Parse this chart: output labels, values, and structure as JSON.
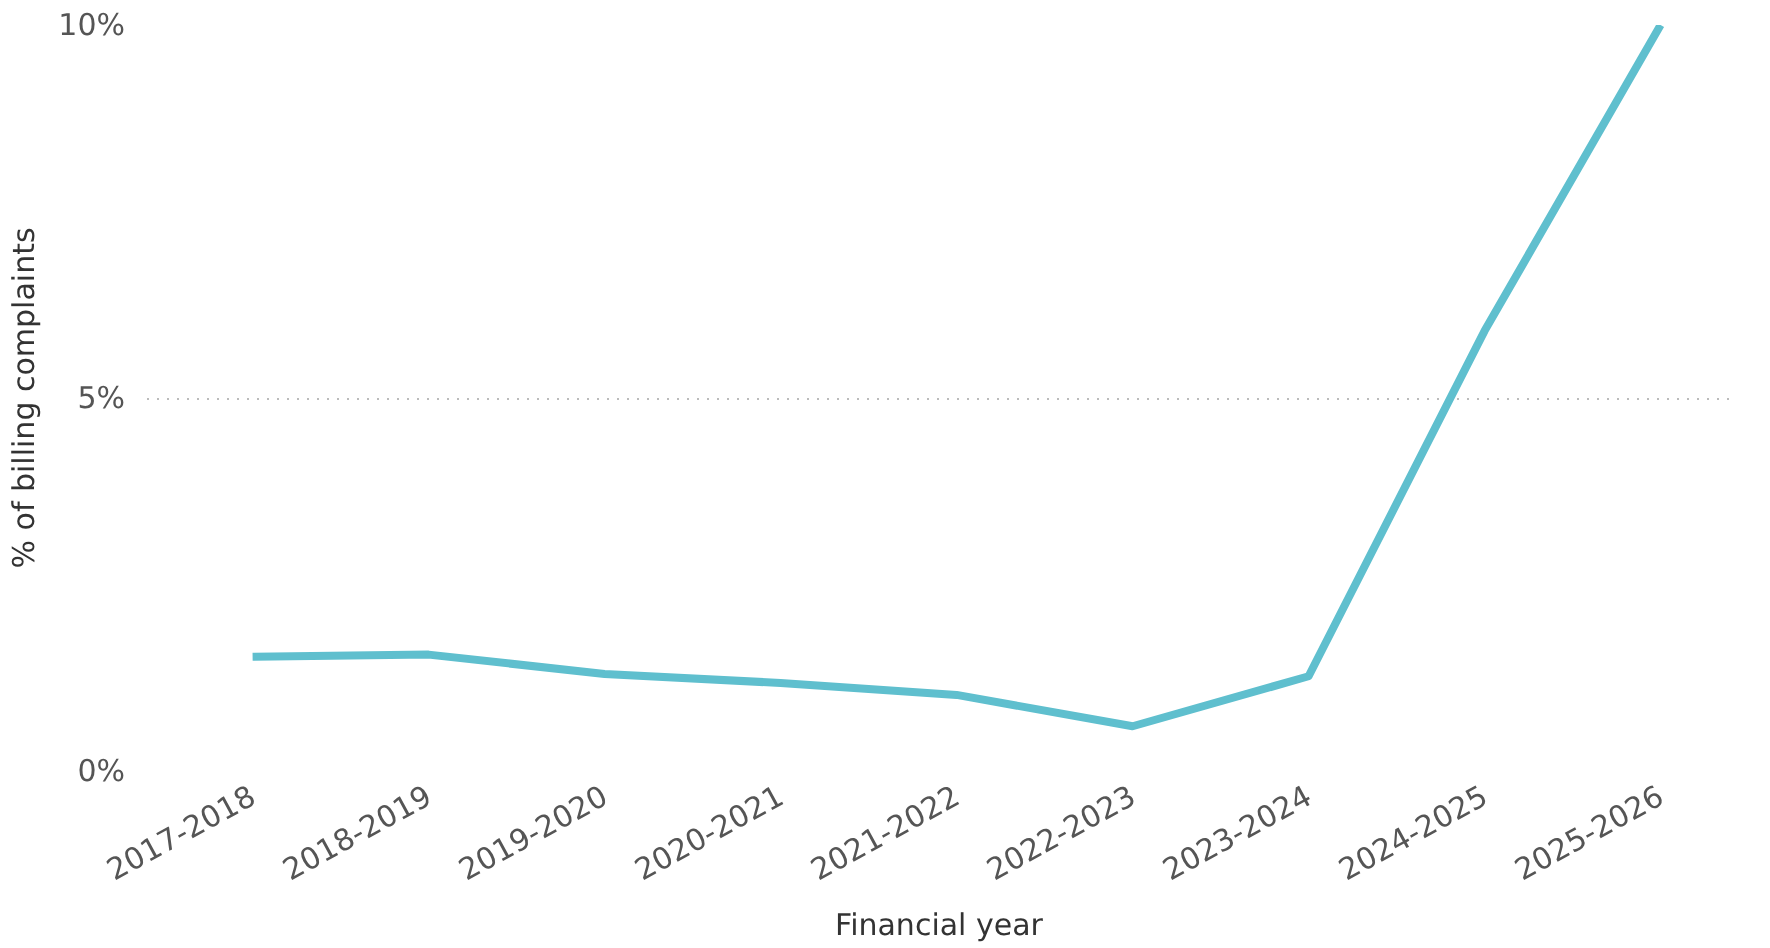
{
  "chart_data": {
    "type": "line",
    "xlabel": "Financial year",
    "ylabel": "% of billing complaints",
    "categories": [
      "2017-2018",
      "2018-2019",
      "2019-2020",
      "2020-2021",
      "2021-2022",
      "2022-2023",
      "2023-2024",
      "2024-2025",
      "2025-2026"
    ],
    "series": [
      {
        "color": "#5fbfce",
        "values": [
          1.53,
          1.56,
          1.3,
          1.18,
          1.02,
          0.6,
          1.27,
          5.9,
          10.0
        ]
      }
    ],
    "ylim": [
      0,
      10
    ],
    "yticks": [
      {
        "value": 0,
        "label": "0%"
      },
      {
        "value": 5,
        "label": "5%"
      },
      {
        "value": 10,
        "label": "10%"
      }
    ],
    "grid": "y",
    "marker": "none",
    "line_style": "solid"
  }
}
